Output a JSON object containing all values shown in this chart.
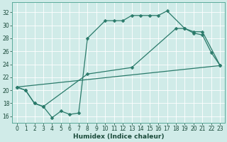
{
  "bg_color": "#d0ebe8",
  "grid_color": "#b8d8d5",
  "line_color": "#2a7a6a",
  "xlabel": "Humidex (Indice chaleur)",
  "xlim": [
    -0.5,
    23.5
  ],
  "ylim": [
    15.0,
    33.5
  ],
  "xticks": [
    0,
    1,
    2,
    3,
    4,
    5,
    6,
    7,
    8,
    9,
    10,
    11,
    12,
    13,
    14,
    15,
    16,
    17,
    18,
    19,
    20,
    21,
    22,
    23
  ],
  "yticks": [
    16,
    18,
    20,
    22,
    24,
    26,
    28,
    30,
    32
  ],
  "line1_x": [
    0,
    1,
    2,
    3,
    4,
    5,
    6,
    7,
    8,
    10,
    11,
    12,
    13,
    14,
    15,
    16,
    17,
    19,
    20,
    21,
    22,
    23
  ],
  "line1_y": [
    20.5,
    20.0,
    18.0,
    17.5,
    15.8,
    16.8,
    16.3,
    16.5,
    28.0,
    30.7,
    30.7,
    30.7,
    31.5,
    31.5,
    31.5,
    31.5,
    32.2,
    29.5,
    28.8,
    28.5,
    25.8,
    23.8
  ],
  "line2_x": [
    0,
    1,
    2,
    3,
    8,
    13,
    18,
    19,
    20,
    21,
    23
  ],
  "line2_y": [
    20.5,
    20.0,
    18.0,
    17.5,
    22.5,
    23.5,
    29.5,
    29.5,
    29.0,
    29.0,
    23.8
  ],
  "line3_x": [
    0,
    23
  ],
  "line3_y": [
    20.5,
    23.8
  ],
  "tick_fontsize": 5.5,
  "xlabel_fontsize": 6.5
}
